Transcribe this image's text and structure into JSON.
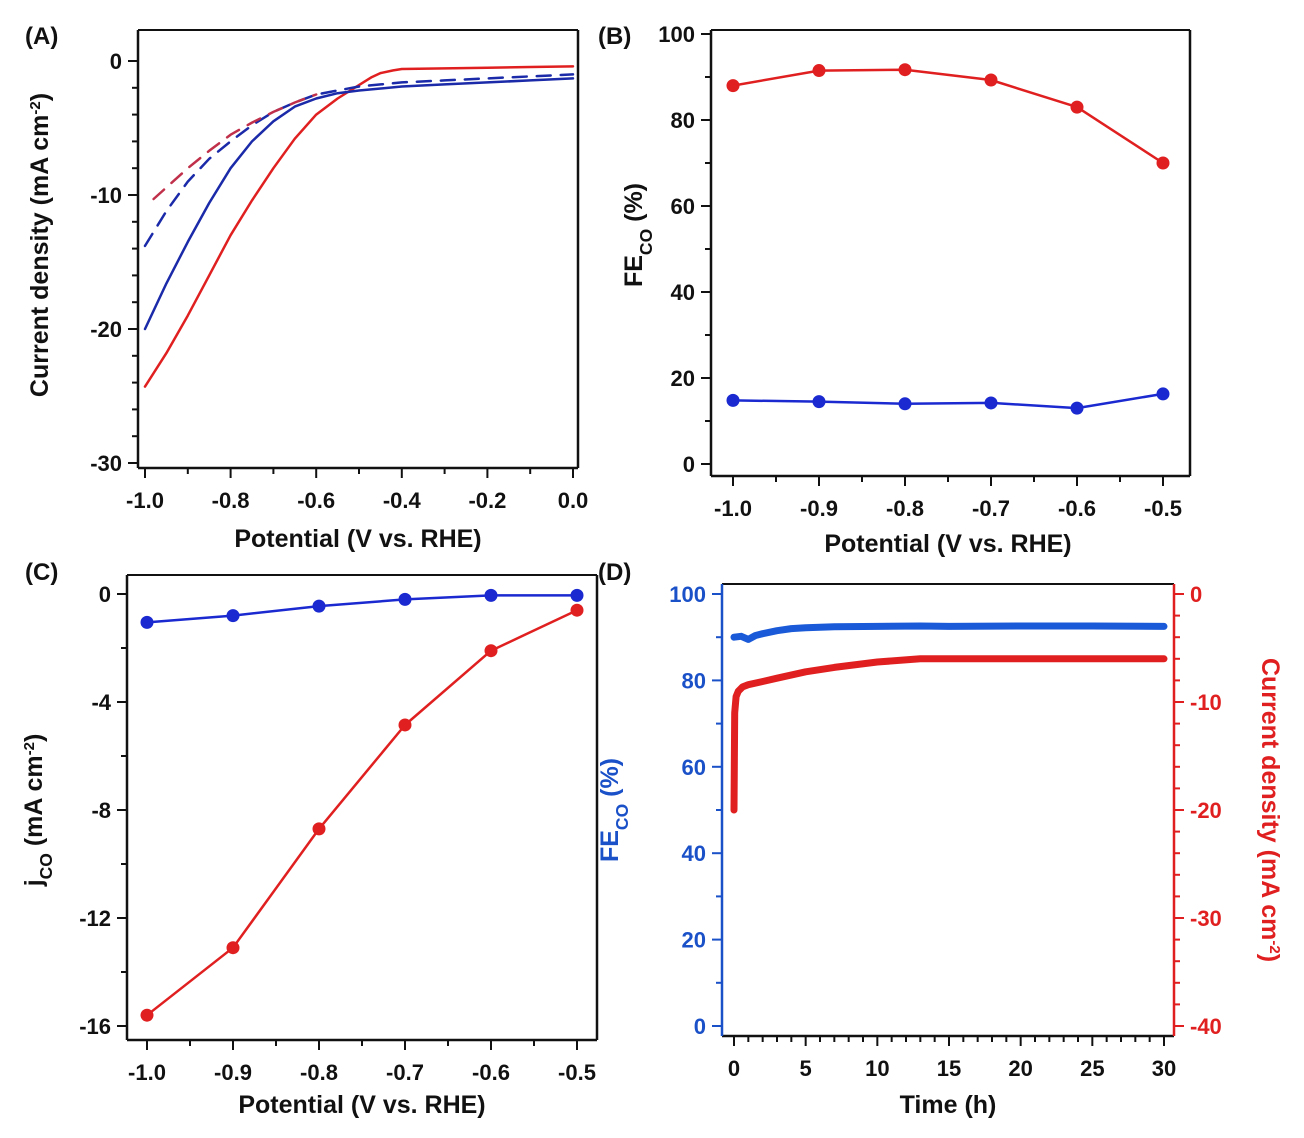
{
  "chart_data": [
    {
      "panel": "(A)",
      "type": "line",
      "xlabel": "Potential (V vs. RHE)",
      "ylabel": [
        {
          "t": "Current density (mA cm"
        },
        {
          "t": "-2",
          "sup": true
        },
        {
          "t": ")"
        }
      ],
      "xlim": [
        -1.0,
        0.0
      ],
      "ylim": [
        -30,
        0
      ],
      "xticks": [
        "-1.0",
        "-0.8",
        "-0.6",
        "-0.4",
        "-0.2",
        "0.0"
      ],
      "yticks": [
        "0",
        "-10",
        "-20",
        "-30"
      ],
      "series": [
        {
          "color": "#e02020",
          "dash": false,
          "x": [
            -1.0,
            -0.95,
            -0.9,
            -0.85,
            -0.8,
            -0.75,
            -0.7,
            -0.65,
            -0.6,
            -0.55,
            -0.5,
            -0.47,
            -0.45,
            -0.42,
            -0.4,
            -0.3,
            -0.2,
            -0.1,
            0.0
          ],
          "y": [
            -24.3,
            -21.8,
            -19.0,
            -16.0,
            -13.0,
            -10.4,
            -8.0,
            -5.8,
            -4.0,
            -2.8,
            -1.8,
            -1.2,
            -0.9,
            -0.7,
            -0.6,
            -0.55,
            -0.5,
            -0.45,
            -0.4
          ]
        },
        {
          "color": "#1a2aa8",
          "dash": false,
          "x": [
            -1.0,
            -0.95,
            -0.9,
            -0.85,
            -0.8,
            -0.75,
            -0.7,
            -0.65,
            -0.6,
            -0.55,
            -0.5,
            -0.4,
            -0.3,
            -0.2,
            -0.1,
            0.0
          ],
          "y": [
            -20.0,
            -16.6,
            -13.5,
            -10.6,
            -8.0,
            -6.0,
            -4.5,
            -3.4,
            -2.8,
            -2.4,
            -2.2,
            -1.9,
            -1.75,
            -1.6,
            -1.45,
            -1.3
          ]
        },
        {
          "color": "#1a2aa8",
          "dash": true,
          "x": [
            -1.0,
            -0.95,
            -0.9,
            -0.85,
            -0.8,
            -0.75,
            -0.7,
            -0.65,
            -0.6,
            -0.5,
            -0.4,
            -0.3,
            -0.2,
            -0.1,
            0.0
          ],
          "y": [
            -13.8,
            -11.2,
            -9.0,
            -7.3,
            -6.0,
            -4.8,
            -3.8,
            -3.1,
            -2.5,
            -1.9,
            -1.6,
            -1.45,
            -1.3,
            -1.15,
            -1.0
          ]
        },
        {
          "color": "#c0304a",
          "dash": true,
          "x": [
            -0.98,
            -0.9,
            -0.85,
            -0.8,
            -0.75,
            -0.7,
            -0.65,
            -0.6
          ],
          "y": [
            -10.3,
            -8.0,
            -6.7,
            -5.5,
            -4.6,
            -3.8,
            -3.1,
            -2.5
          ]
        }
      ]
    },
    {
      "panel": "(B)",
      "type": "line",
      "xlabel": "Potential (V vs. RHE)",
      "ylabel": [
        {
          "t": "FE"
        },
        {
          "t": "CO",
          "sub": true
        },
        {
          "t": " (%)"
        }
      ],
      "xlim": [
        -1.0,
        -0.5
      ],
      "ylim": [
        0,
        100
      ],
      "xticks": [
        "-1.0",
        "-0.9",
        "-0.8",
        "-0.7",
        "-0.6",
        "-0.5"
      ],
      "yticks": [
        "0",
        "20",
        "40",
        "60",
        "80",
        "100"
      ],
      "series": [
        {
          "color": "#e02020",
          "markers": true,
          "x": [
            -1.0,
            -0.9,
            -0.8,
            -0.7,
            -0.6,
            -0.5
          ],
          "y": [
            88.0,
            91.5,
            91.7,
            89.3,
            83.0,
            70.0
          ]
        },
        {
          "color": "#1a2ad0",
          "markers": true,
          "x": [
            -1.0,
            -0.9,
            -0.8,
            -0.7,
            -0.6,
            -0.5
          ],
          "y": [
            14.8,
            14.5,
            14.0,
            14.2,
            13.0,
            16.3
          ]
        }
      ]
    },
    {
      "panel": "(C)",
      "type": "line",
      "xlabel": "Potential (V vs. RHE)",
      "ylabel": [
        {
          "t": "j"
        },
        {
          "t": "CO",
          "sub": true
        },
        {
          "t": " (mA cm"
        },
        {
          "t": "-2",
          "sup": true
        },
        {
          "t": ")"
        }
      ],
      "xlim": [
        -1.0,
        -0.5
      ],
      "ylim": [
        -16,
        0
      ],
      "xticks": [
        "-1.0",
        "-0.9",
        "-0.8",
        "-0.7",
        "-0.6",
        "-0.5"
      ],
      "yticks": [
        "0",
        "-4",
        "-8",
        "-12",
        "-16"
      ],
      "series": [
        {
          "color": "#1a2ad0",
          "markers": true,
          "x": [
            -1.0,
            -0.9,
            -0.8,
            -0.7,
            -0.6,
            -0.5
          ],
          "y": [
            -1.05,
            -0.8,
            -0.45,
            -0.2,
            -0.05,
            -0.05
          ]
        },
        {
          "color": "#e02020",
          "markers": true,
          "x": [
            -1.0,
            -0.9,
            -0.8,
            -0.7,
            -0.6,
            -0.5
          ],
          "y": [
            -15.6,
            -13.1,
            -8.7,
            -4.85,
            -2.1,
            -0.6
          ]
        }
      ]
    },
    {
      "panel": "(D)",
      "type": "line",
      "xlabel": "Time (h)",
      "ylabel": [
        {
          "t": "FE"
        },
        {
          "t": "CO",
          "sub": true
        },
        {
          "t": " (%)"
        }
      ],
      "ylabel_right": [
        {
          "t": "Current density (mA cm"
        },
        {
          "t": "-2",
          "sup": true
        },
        {
          "t": ")"
        }
      ],
      "xlim": [
        0,
        30
      ],
      "ylim": [
        0,
        100
      ],
      "ylim_right": [
        -40,
        0
      ],
      "xticks": [
        "0",
        "5",
        "10",
        "15",
        "20",
        "25",
        "30"
      ],
      "yticks": [
        "0",
        "20",
        "40",
        "60",
        "80",
        "100"
      ],
      "yticks_right": [
        "0",
        "-10",
        "-20",
        "-30",
        "-40"
      ],
      "left_axis_color": "#1a50c8",
      "right_axis_color": "#e02020",
      "series": [
        {
          "color": "#1a5ad8",
          "axis": "left",
          "x": [
            0,
            0.5,
            1,
            1.5,
            2,
            3,
            4,
            5,
            7,
            10,
            13,
            15,
            20,
            25,
            30
          ],
          "y": [
            90.0,
            90.2,
            89.5,
            90.4,
            90.8,
            91.5,
            92.0,
            92.2,
            92.4,
            92.5,
            92.6,
            92.5,
            92.6,
            92.6,
            92.5
          ]
        },
        {
          "color": "#e02020",
          "axis": "right",
          "x": [
            0,
            0.05,
            0.15,
            0.3,
            0.6,
            1,
            2,
            3,
            5,
            7,
            10,
            13,
            15,
            20,
            25,
            30
          ],
          "y": [
            -20.0,
            -11.0,
            -9.5,
            -9.0,
            -8.6,
            -8.4,
            -8.1,
            -7.8,
            -7.2,
            -6.8,
            -6.3,
            -6.0,
            -6.0,
            -6.0,
            -6.0,
            -6.0
          ]
        }
      ]
    }
  ]
}
